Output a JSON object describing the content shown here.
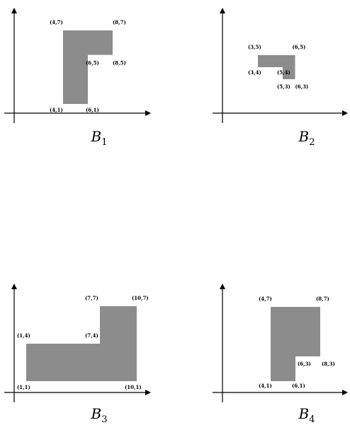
{
  "panels": [
    {
      "caption_main": "B",
      "caption_sub": "1",
      "fill": "#8c8c8c",
      "polygon": [
        [
          4,
          1
        ],
        [
          6,
          1
        ],
        [
          6,
          5
        ],
        [
          8,
          5
        ],
        [
          8,
          7
        ],
        [
          4,
          7
        ]
      ],
      "labels": [
        {
          "text": "(4,7)",
          "at": [
            4,
            7
          ]
        },
        {
          "text": "(8,7)",
          "at": [
            8,
            7
          ]
        },
        {
          "text": "(6,5)",
          "at": [
            6,
            5
          ]
        },
        {
          "text": "(8,5)",
          "at": [
            8,
            5
          ]
        },
        {
          "text": "(4,1)",
          "at": [
            4,
            1
          ]
        },
        {
          "text": "(6,1)",
          "at": [
            6,
            1
          ]
        }
      ]
    },
    {
      "caption_main": "B",
      "caption_sub": "2",
      "fill": "#8c8c8c",
      "polygon": [
        [
          3,
          4
        ],
        [
          5,
          4
        ],
        [
          5,
          3
        ],
        [
          6,
          3
        ],
        [
          6,
          5
        ],
        [
          3,
          5
        ]
      ],
      "labels": [
        {
          "text": "(3,5)",
          "at": [
            3,
            5
          ]
        },
        {
          "text": "(6,5)",
          "at": [
            6,
            5
          ]
        },
        {
          "text": "(3,4)",
          "at": [
            3,
            4
          ]
        },
        {
          "text": "(5,4)",
          "at": [
            5,
            4
          ]
        },
        {
          "text": "(5,3)",
          "at": [
            5,
            3
          ]
        },
        {
          "text": "(6,3)",
          "at": [
            6,
            3
          ]
        }
      ]
    },
    {
      "caption_main": "B",
      "caption_sub": "3",
      "fill": "#8c8c8c",
      "polygon": [
        [
          1,
          1
        ],
        [
          10,
          1
        ],
        [
          10,
          7
        ],
        [
          7,
          7
        ],
        [
          7,
          4
        ],
        [
          1,
          4
        ]
      ],
      "labels": [
        {
          "text": "(7,7)",
          "at": [
            7,
            7
          ]
        },
        {
          "text": "(10,7)",
          "at": [
            10,
            7
          ]
        },
        {
          "text": "(1,4)",
          "at": [
            1,
            4
          ]
        },
        {
          "text": "(7,4)",
          "at": [
            7,
            4
          ]
        },
        {
          "text": "(1,1)",
          "at": [
            1,
            1
          ]
        },
        {
          "text": "(10,1)",
          "at": [
            10,
            1
          ]
        }
      ]
    },
    {
      "caption_main": "B",
      "caption_sub": "4",
      "fill": "#8c8c8c",
      "polygon": [
        [
          4,
          1
        ],
        [
          6,
          1
        ],
        [
          6,
          3
        ],
        [
          8,
          3
        ],
        [
          8,
          7
        ],
        [
          4,
          7
        ]
      ],
      "labels": [
        {
          "text": "(4,7)",
          "at": [
            4,
            7
          ]
        },
        {
          "text": "(8,7)",
          "at": [
            8,
            7
          ]
        },
        {
          "text": "(6,3)",
          "at": [
            6,
            3
          ]
        },
        {
          "text": "(8,3)",
          "at": [
            8,
            3
          ]
        },
        {
          "text": "(4,1)",
          "at": [
            4,
            1
          ]
        },
        {
          "text": "(6,1)",
          "at": [
            6,
            1
          ]
        }
      ]
    }
  ]
}
